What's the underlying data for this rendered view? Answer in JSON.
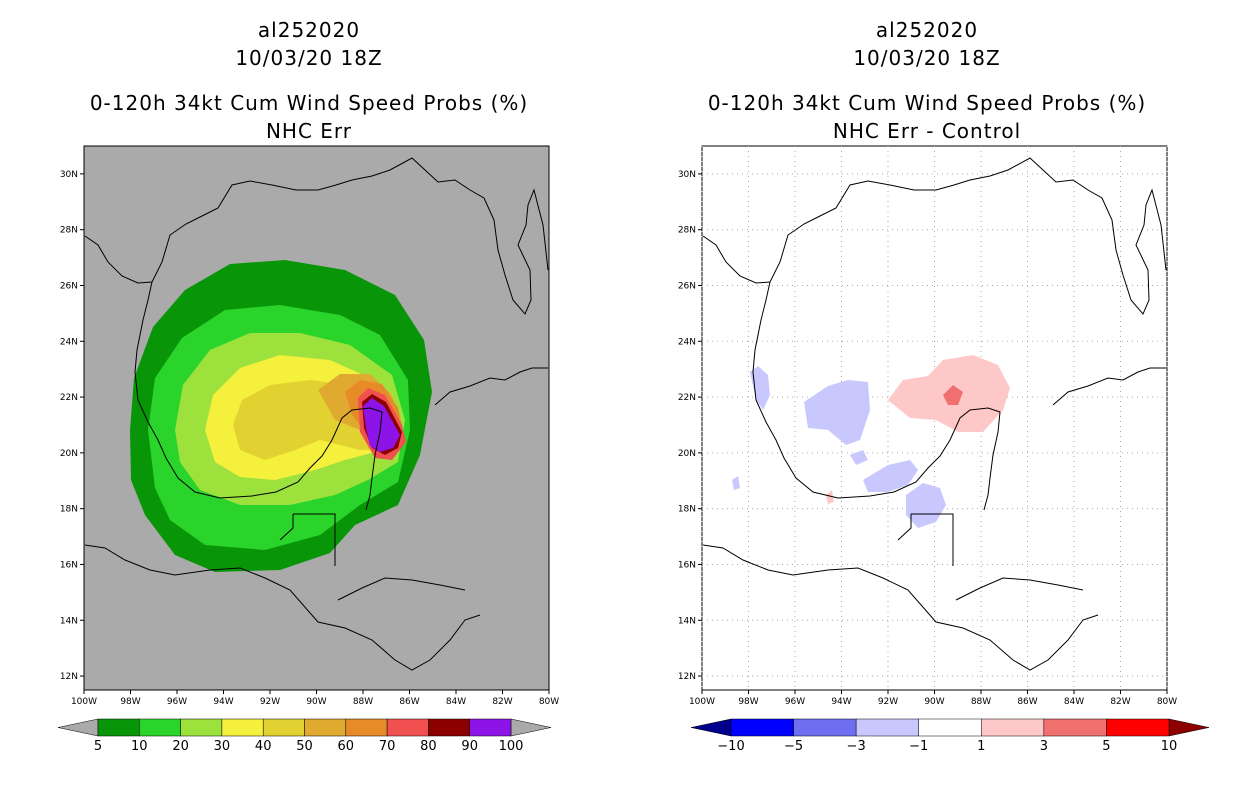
{
  "left": {
    "storm_id": "al252020",
    "date": "10/03/20 18Z",
    "product": "0-120h 34kt Cum Wind Speed Probs (%)",
    "subtitle": "NHC Err",
    "background": "#aaaaaa",
    "colorbar": {
      "labels": [
        "5",
        "10",
        "20",
        "30",
        "40",
        "50",
        "60",
        "70",
        "80",
        "90",
        "100"
      ],
      "colors": [
        "#089608",
        "#2ad42a",
        "#9de13c",
        "#f5f03c",
        "#e1d232",
        "#e0aa31",
        "#e68b27",
        "#f05050",
        "#8c0000",
        "#8c14e6"
      ],
      "under": "#aaaaaa",
      "over": "#aaaaaa"
    }
  },
  "right": {
    "storm_id": "al252020",
    "date": "10/03/20 18Z",
    "product": "0-120h 34kt Cum Wind Speed Probs (%)",
    "subtitle": "NHC Err - Control",
    "background": "#ffffff",
    "colorbar": {
      "labels": [
        "−10",
        "−5",
        "−3",
        "−1",
        "1",
        "3",
        "5",
        "10"
      ],
      "colors": [
        "#0000ff",
        "#6e6ef0",
        "#c8c8ff",
        "#ffffff",
        "#ffc8c8",
        "#f07070",
        "#ff0000"
      ],
      "under": "#00008c",
      "over": "#8c0000"
    }
  },
  "axes": {
    "lat_labels": [
      "30N",
      "28N",
      "26N",
      "24N",
      "22N",
      "20N",
      "18N",
      "16N",
      "14N",
      "12N"
    ],
    "lon_labels": [
      "100W",
      "98W",
      "96W",
      "94W",
      "92W",
      "90W",
      "88W",
      "86W",
      "84W",
      "82W",
      "80W"
    ],
    "lat_range": [
      11.5,
      31.0
    ],
    "lon_range": [
      -100,
      -80
    ]
  }
}
